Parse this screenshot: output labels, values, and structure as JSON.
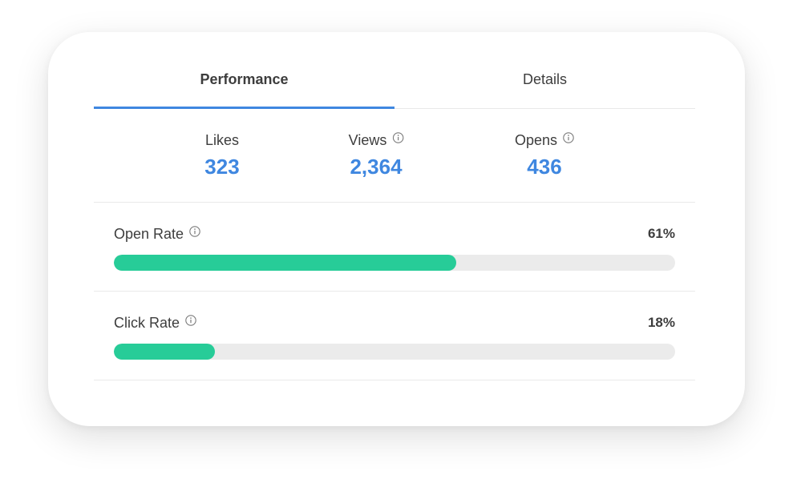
{
  "tabs": [
    {
      "label": "Performance",
      "active": true
    },
    {
      "label": "Details",
      "active": false
    }
  ],
  "stats": {
    "likes": {
      "label": "Likes",
      "value": "323"
    },
    "views": {
      "label": "Views",
      "value": "2,364",
      "icon": "info-icon"
    },
    "opens": {
      "label": "Opens",
      "value": "436",
      "icon": "info-icon"
    }
  },
  "rates": {
    "open_rate": {
      "label": "Open Rate",
      "value_label": "61%",
      "percent": 61,
      "icon": "info-icon"
    },
    "click_rate": {
      "label": "Click Rate",
      "value_label": "18%",
      "percent": 18,
      "icon": "info-icon"
    }
  },
  "colors": {
    "accent": "#3f87e0",
    "bar_fill": "#27cc98",
    "bar_track": "#ebebeb",
    "text": "#3d3d3d"
  }
}
